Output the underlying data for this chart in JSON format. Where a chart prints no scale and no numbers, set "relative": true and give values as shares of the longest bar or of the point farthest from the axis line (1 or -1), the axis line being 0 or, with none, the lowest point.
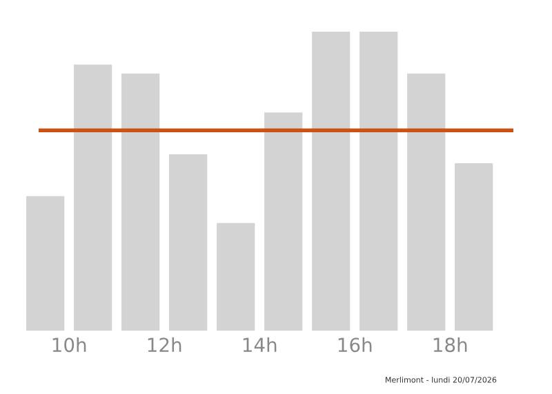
{
  "chart_data": {
    "type": "bar",
    "relative": true,
    "x": [
      9.5,
      10.5,
      11.5,
      12.5,
      13.5,
      14.5,
      15.5,
      16.5,
      17.5,
      18.5
    ],
    "values": [
      0.45,
      0.89,
      0.86,
      0.59,
      0.36,
      0.73,
      1,
      1,
      0.86,
      0.56
    ],
    "color": "#d3d3d3",
    "xlim": [
      9.36,
      19.33
    ],
    "xticks": [
      {
        "value": 10,
        "label": "10h"
      },
      {
        "value": 12,
        "label": "12h"
      },
      {
        "value": 14,
        "label": "14h"
      },
      {
        "value": 16,
        "label": "16h"
      },
      {
        "value": 18,
        "label": "18h"
      }
    ],
    "tick_labels": "x",
    "grid": false,
    "legend": false,
    "ref_lines": [
      {
        "axis": "y",
        "value": 0.67,
        "color": "#cc5214"
      }
    ],
    "annotations": [
      "Merlimont - lundi 20/07/2026"
    ]
  }
}
